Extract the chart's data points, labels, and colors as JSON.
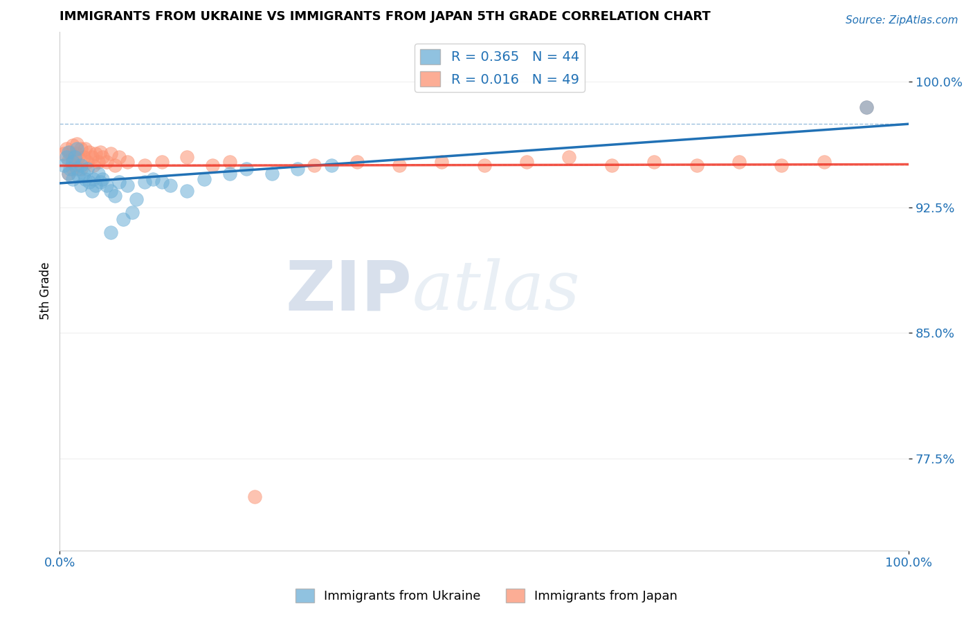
{
  "title": "IMMIGRANTS FROM UKRAINE VS IMMIGRANTS FROM JAPAN 5TH GRADE CORRELATION CHART",
  "source": "Source: ZipAtlas.com",
  "ylabel": "5th Grade",
  "xlim": [
    0.0,
    1.0
  ],
  "ylim": [
    0.72,
    1.03
  ],
  "ukraine_R": 0.365,
  "ukraine_N": 44,
  "japan_R": 0.016,
  "japan_N": 49,
  "ukraine_color": "#6baed6",
  "japan_color": "#fc9272",
  "ukraine_line_color": "#2171b5",
  "japan_line_color": "#ef3b2c",
  "legend_label_ukraine": "Immigrants from Ukraine",
  "legend_label_japan": "Immigrants from Japan",
  "background_color": "#ffffff",
  "watermark_zip": "ZIP",
  "watermark_atlas": "atlas",
  "ukraine_x": [
    0.005,
    0.008,
    0.01,
    0.01,
    0.012,
    0.015,
    0.015,
    0.018,
    0.02,
    0.02,
    0.022,
    0.025,
    0.025,
    0.028,
    0.03,
    0.032,
    0.035,
    0.038,
    0.04,
    0.042,
    0.045,
    0.048,
    0.05,
    0.055,
    0.06,
    0.065,
    0.07,
    0.08,
    0.09,
    0.1,
    0.11,
    0.13,
    0.15,
    0.17,
    0.2,
    0.22,
    0.25,
    0.28,
    0.32,
    0.06,
    0.075,
    0.085,
    0.12,
    0.95
  ],
  "ukraine_y": [
    0.95,
    0.955,
    0.945,
    0.958,
    0.948,
    0.952,
    0.942,
    0.955,
    0.948,
    0.96,
    0.944,
    0.95,
    0.938,
    0.945,
    0.942,
    0.948,
    0.94,
    0.935,
    0.942,
    0.938,
    0.945,
    0.94,
    0.942,
    0.938,
    0.935,
    0.932,
    0.94,
    0.938,
    0.93,
    0.94,
    0.942,
    0.938,
    0.935,
    0.942,
    0.945,
    0.948,
    0.945,
    0.948,
    0.95,
    0.91,
    0.918,
    0.922,
    0.94,
    0.985
  ],
  "japan_x": [
    0.005,
    0.008,
    0.01,
    0.012,
    0.015,
    0.015,
    0.018,
    0.02,
    0.02,
    0.022,
    0.025,
    0.025,
    0.028,
    0.03,
    0.032,
    0.035,
    0.038,
    0.04,
    0.042,
    0.045,
    0.048,
    0.05,
    0.055,
    0.06,
    0.065,
    0.07,
    0.08,
    0.1,
    0.12,
    0.15,
    0.18,
    0.2,
    0.3,
    0.35,
    0.4,
    0.45,
    0.5,
    0.55,
    0.6,
    0.65,
    0.7,
    0.75,
    0.8,
    0.85,
    0.9,
    0.95,
    0.01,
    0.015,
    0.23
  ],
  "japan_y": [
    0.957,
    0.96,
    0.953,
    0.958,
    0.955,
    0.962,
    0.95,
    0.957,
    0.963,
    0.955,
    0.96,
    0.948,
    0.955,
    0.96,
    0.952,
    0.958,
    0.955,
    0.95,
    0.957,
    0.952,
    0.958,
    0.955,
    0.952,
    0.957,
    0.95,
    0.955,
    0.952,
    0.95,
    0.952,
    0.955,
    0.95,
    0.952,
    0.95,
    0.952,
    0.95,
    0.952,
    0.95,
    0.952,
    0.955,
    0.95,
    0.952,
    0.95,
    0.952,
    0.95,
    0.952,
    0.985,
    0.945,
    0.948,
    0.752
  ]
}
